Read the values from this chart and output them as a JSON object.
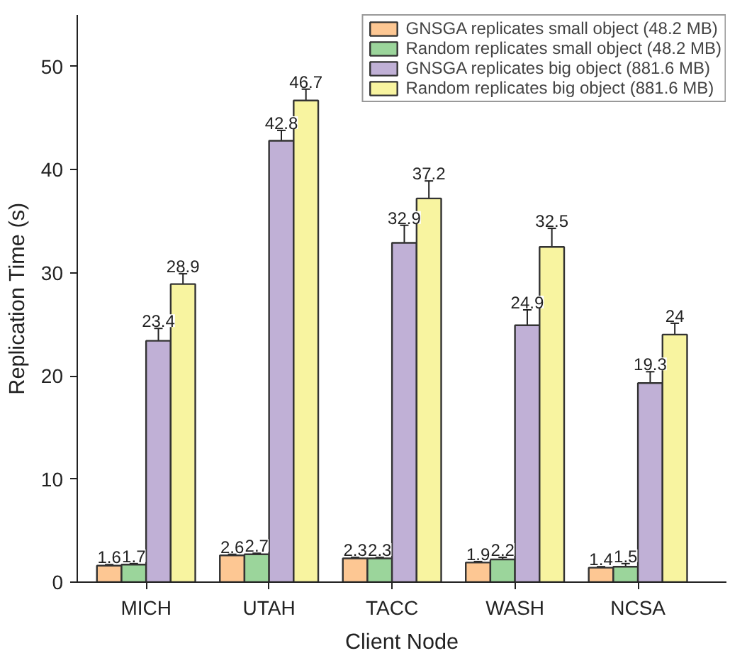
{
  "chart_data": {
    "type": "bar",
    "xlabel": "Client Node",
    "ylabel": "Replication Time (s)",
    "categories": [
      "MICH",
      "UTAH",
      "TACC",
      "WASH",
      "NCSA"
    ],
    "series": [
      {
        "name": "GNSGA replicates small object (48.2 MB)",
        "color": "#fdc793",
        "values": [
          1.6,
          2.6,
          2.3,
          1.9,
          1.4
        ],
        "errors": [
          0.1,
          0.1,
          0.1,
          0.1,
          0.1
        ]
      },
      {
        "name": "Random replicates small object (48.2 MB)",
        "color": "#9bd59b",
        "values": [
          1.7,
          2.7,
          2.3,
          2.2,
          1.5
        ],
        "errors": [
          0.1,
          0.1,
          0.1,
          0.2,
          0.3
        ]
      },
      {
        "name": "GNSGA replicates big object (881.6 MB)",
        "color": "#c0b0d6",
        "values": [
          23.4,
          42.8,
          32.9,
          24.9,
          19.3
        ],
        "errors": [
          1.2,
          1.0,
          1.7,
          1.5,
          1.1
        ]
      },
      {
        "name": "Random replicates big object (881.6 MB)",
        "color": "#f8f4a0",
        "values": [
          28.9,
          46.7,
          37.2,
          32.5,
          24
        ],
        "errors": [
          1.0,
          1.1,
          1.7,
          1.8,
          1.1
        ]
      }
    ],
    "ylim": [
      0,
      55
    ],
    "yticks": [
      0,
      10,
      20,
      30,
      40,
      50
    ],
    "grid": false,
    "legend": "top right",
    "data_labels": true
  }
}
